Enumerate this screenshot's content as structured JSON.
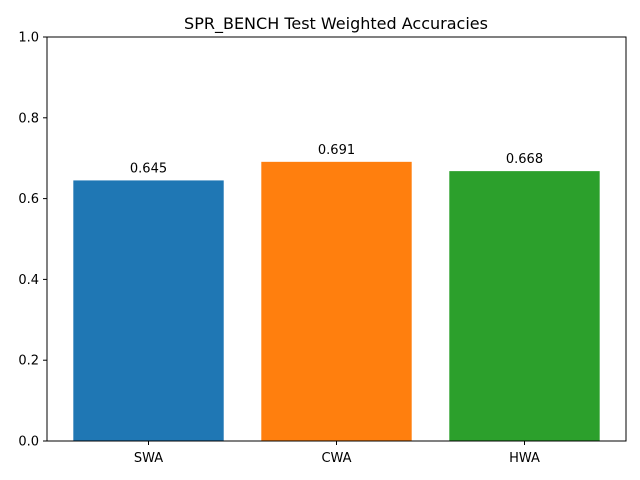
{
  "chart_data": {
    "type": "bar",
    "title": "SPR_BENCH Test Weighted Accuracies",
    "xlabel": "",
    "ylabel": "",
    "categories": [
      "SWA",
      "CWA",
      "HWA"
    ],
    "values": [
      0.645,
      0.691,
      0.668
    ],
    "data_labels": [
      "0.645",
      "0.691",
      "0.668"
    ],
    "colors": [
      "#1f77b4",
      "#ff7f0e",
      "#2ca02c"
    ],
    "ylim": [
      0,
      1.0
    ],
    "yticks": [
      0.0,
      0.2,
      0.4,
      0.6,
      0.8,
      1.0
    ],
    "ytick_labels": [
      "0.0",
      "0.2",
      "0.4",
      "0.6",
      "0.8",
      "1.0"
    ],
    "grid": false,
    "legend": "none"
  }
}
